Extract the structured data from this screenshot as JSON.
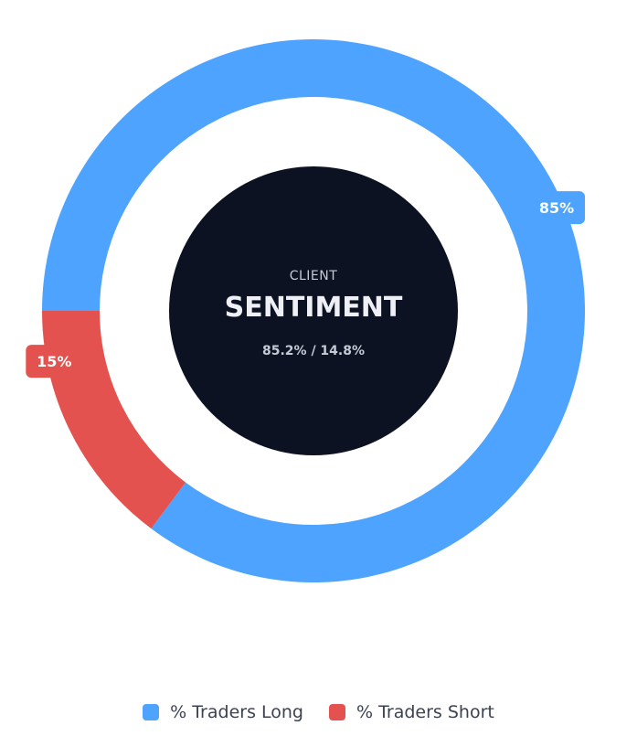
{
  "chart_data": {
    "type": "pie",
    "variant": "donut",
    "series": [
      {
        "name": "% Traders Long",
        "value": 85.2,
        "label": "85%",
        "color": "#4da3fd"
      },
      {
        "name": "% Traders Short",
        "value": 14.8,
        "label": "15%",
        "color": "#e45250"
      }
    ],
    "legend_position": "bottom-center"
  },
  "center": {
    "small_label": "CLIENT",
    "title": "SENTIMENT",
    "ratio": "85.2% / 14.8%",
    "background": "#0c1222"
  },
  "legend": {
    "items": [
      {
        "label": "% Traders Long",
        "color": "#4da3fd"
      },
      {
        "label": "% Traders Short",
        "color": "#e45250"
      }
    ]
  }
}
